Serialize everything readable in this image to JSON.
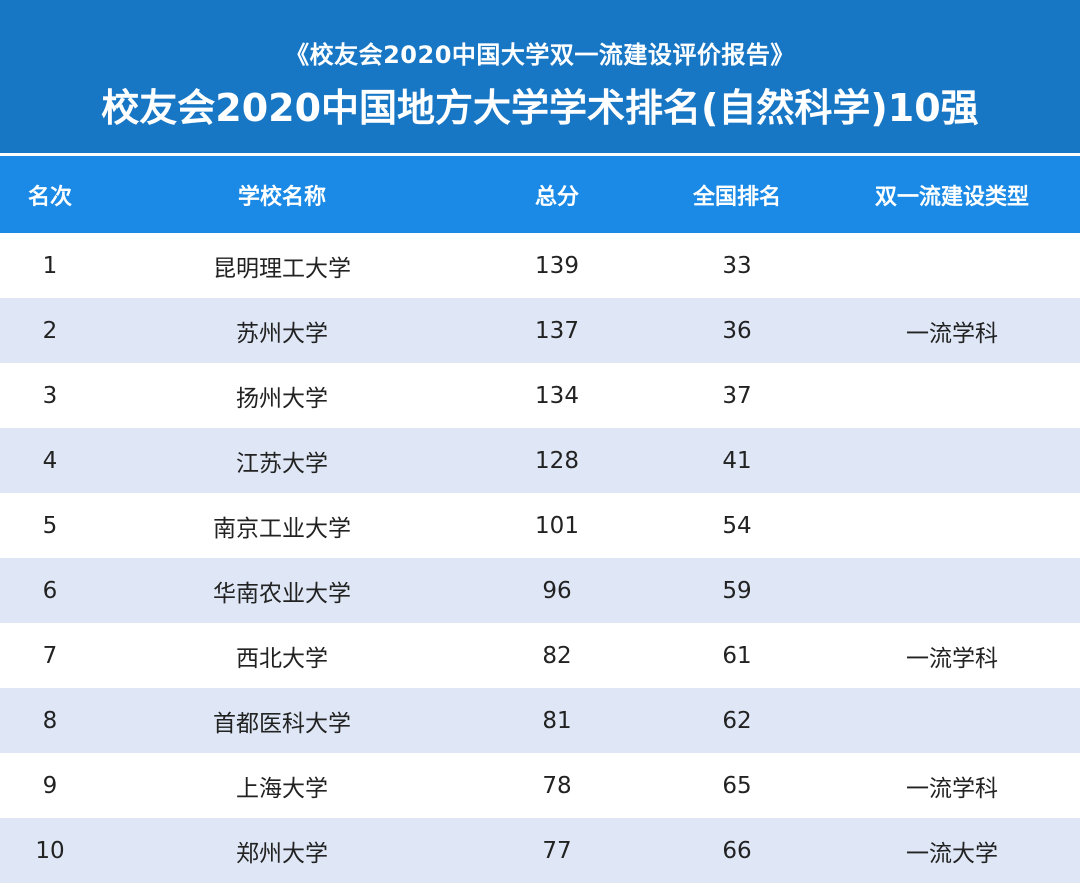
{
  "header": {
    "subtitle": "《校友会2020中国大学双一流建设评价报告》",
    "title": "校友会2020中国地方大学学术排名(自然科学)10强"
  },
  "table": {
    "columns": [
      "名次",
      "学校名称",
      "总分",
      "全国排名",
      "双一流建设类型"
    ],
    "rows": [
      {
        "rank": "1",
        "school": "昆明理工大学",
        "score": "139",
        "national_rank": "33",
        "type": ""
      },
      {
        "rank": "2",
        "school": "苏州大学",
        "score": "137",
        "national_rank": "36",
        "type": "一流学科"
      },
      {
        "rank": "3",
        "school": "扬州大学",
        "score": "134",
        "national_rank": "37",
        "type": ""
      },
      {
        "rank": "4",
        "school": "江苏大学",
        "score": "128",
        "national_rank": "41",
        "type": ""
      },
      {
        "rank": "5",
        "school": "南京工业大学",
        "score": "101",
        "national_rank": "54",
        "type": ""
      },
      {
        "rank": "6",
        "school": "华南农业大学",
        "score": "96",
        "national_rank": "59",
        "type": ""
      },
      {
        "rank": "7",
        "school": "西北大学",
        "score": "82",
        "national_rank": "61",
        "type": "一流学科"
      },
      {
        "rank": "8",
        "school": "首都医科大学",
        "score": "81",
        "national_rank": "62",
        "type": ""
      },
      {
        "rank": "9",
        "school": "上海大学",
        "score": "78",
        "national_rank": "65",
        "type": "一流学科"
      },
      {
        "rank": "10",
        "school": "郑州大学",
        "score": "77",
        "national_rank": "66",
        "type": "一流大学"
      }
    ]
  },
  "colors": {
    "banner": "#1877c5",
    "header_row": "#1a8ae6",
    "alt_row": "#dfe7f6"
  }
}
